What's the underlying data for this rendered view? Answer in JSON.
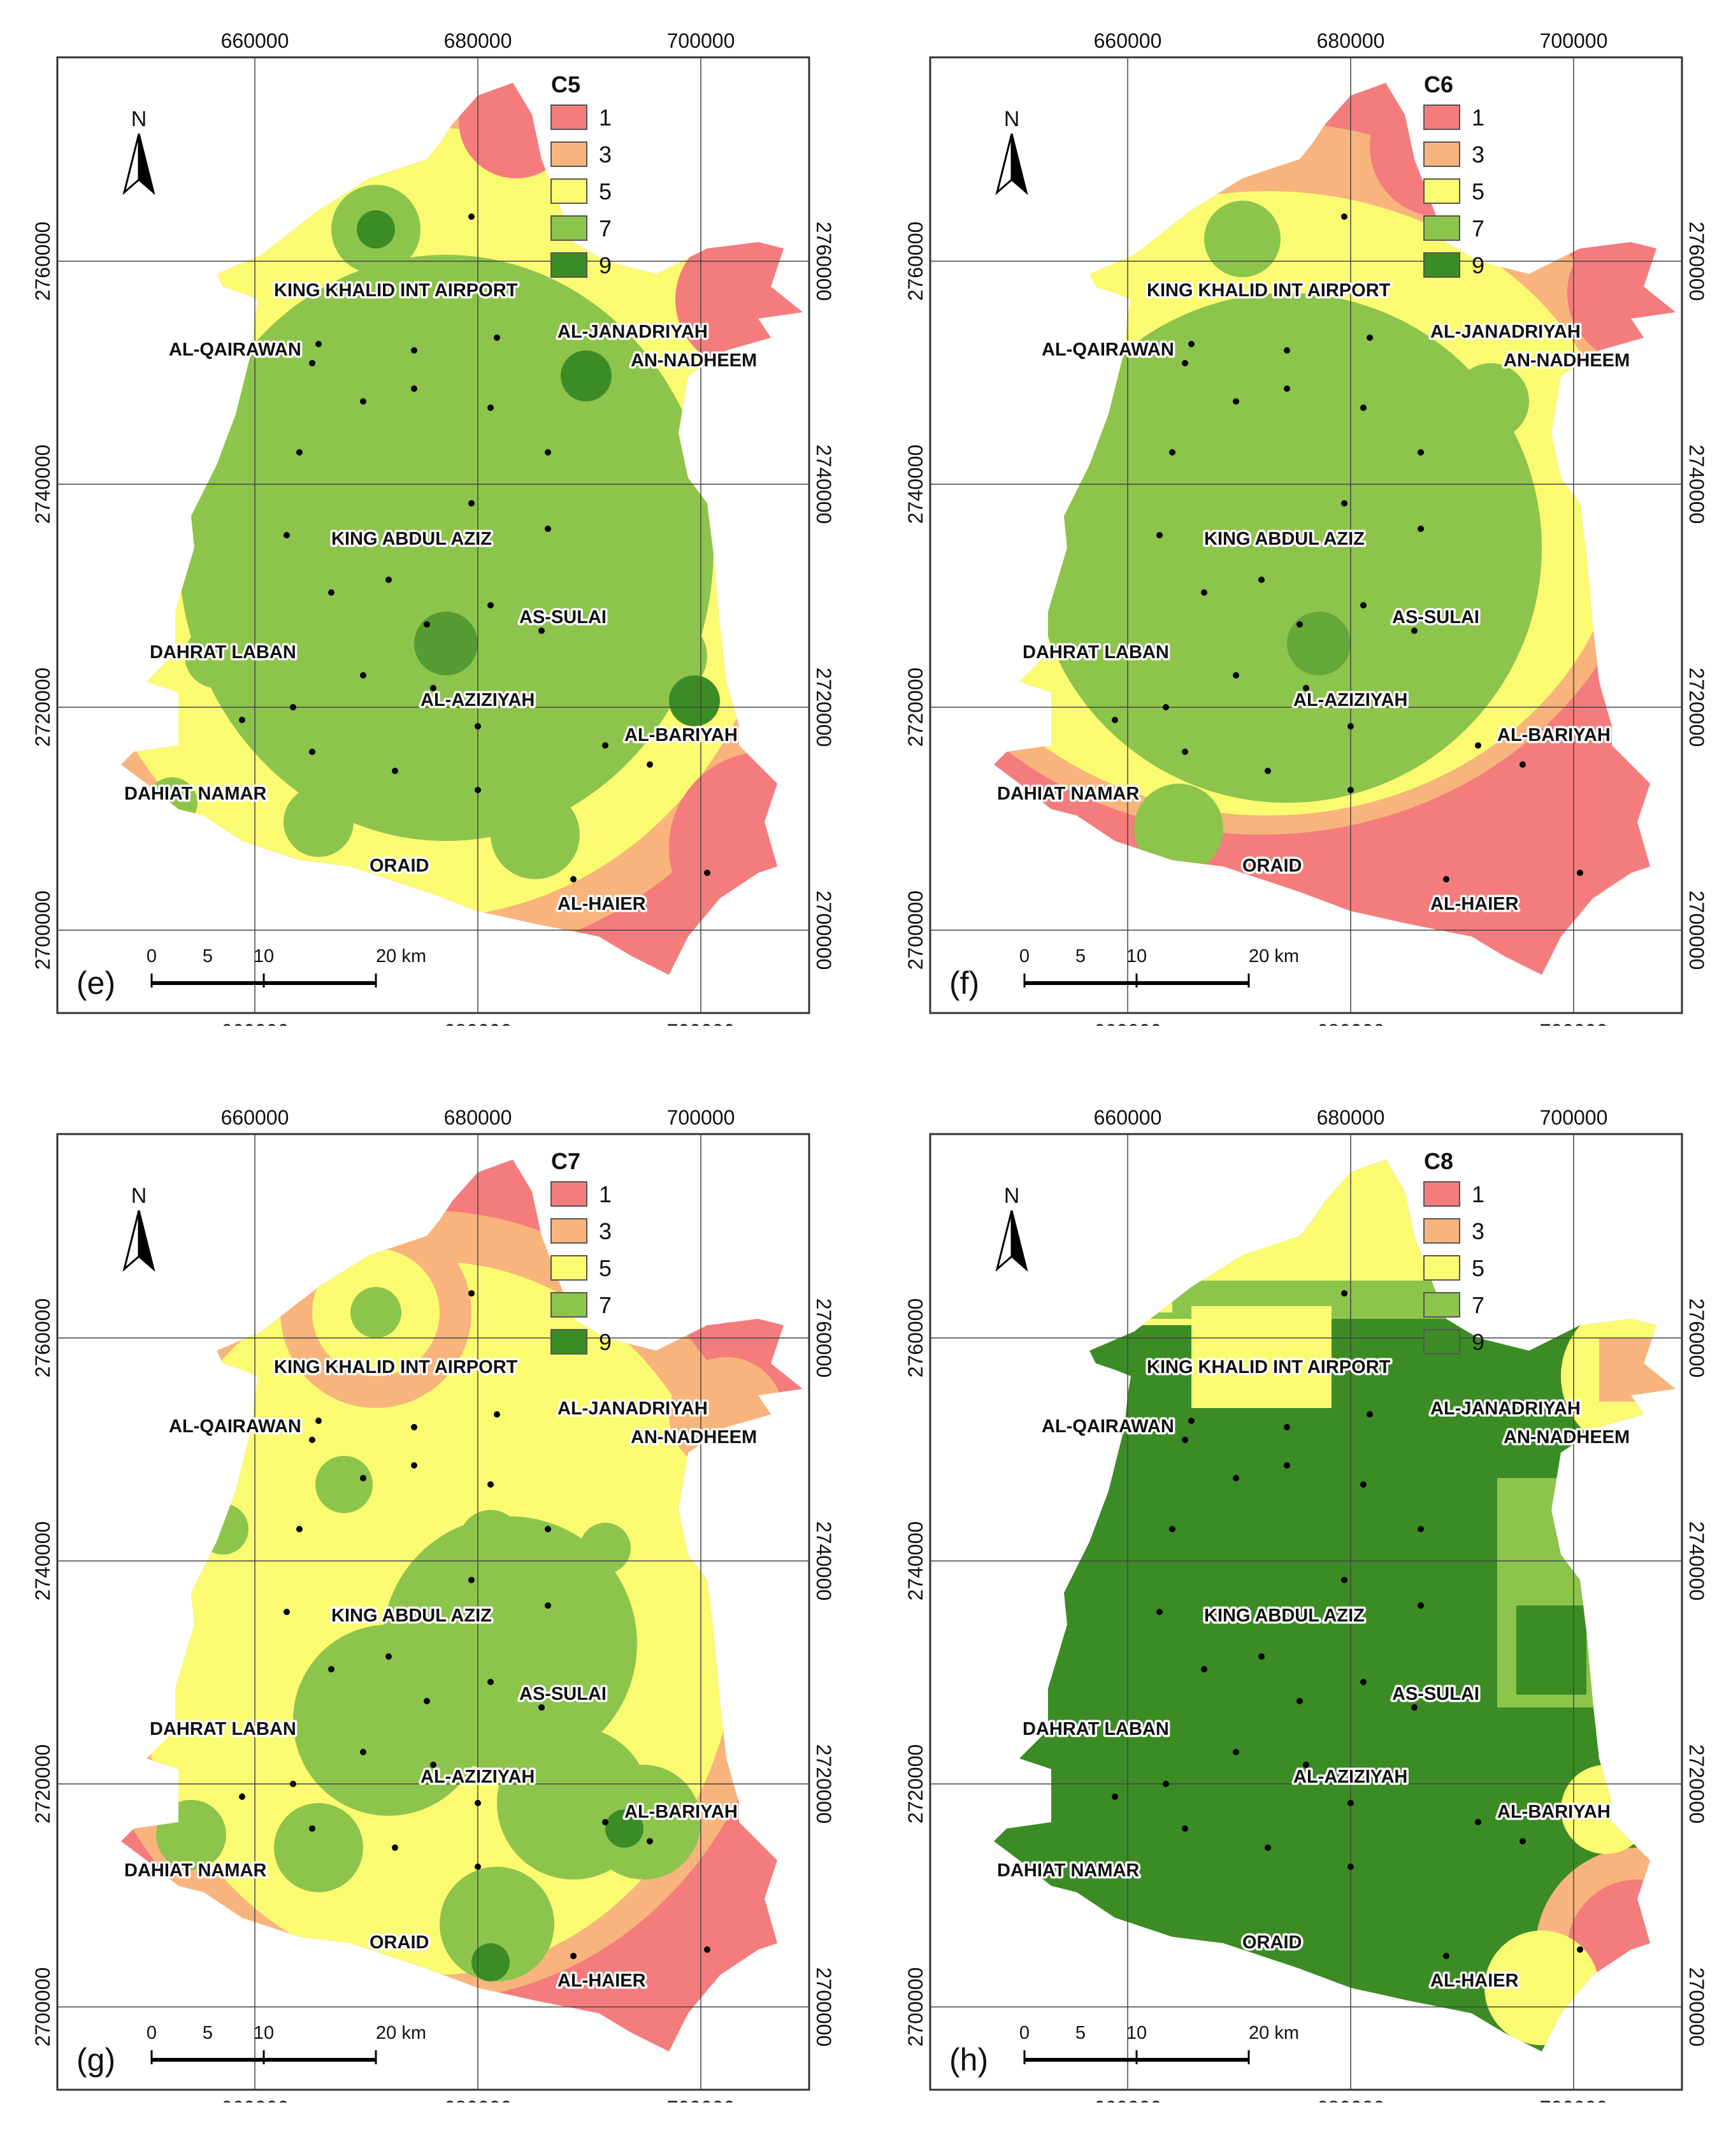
{
  "figure": {
    "x_ticks": [
      "660000",
      "680000",
      "700000"
    ],
    "y_ticks": [
      "2700000",
      "2720000",
      "2740000",
      "2760000"
    ],
    "legend_classes": [
      {
        "label": "1",
        "color": "#f47c7c"
      },
      {
        "label": "3",
        "color": "#f8b47c"
      },
      {
        "label": "5",
        "color": "#fbfb72"
      },
      {
        "label": "7",
        "color": "#8dc44c"
      },
      {
        "label": "9",
        "color": "#3c8c26"
      }
    ],
    "north_label": "N",
    "scale_labels": [
      "0",
      "5",
      "10",
      "20 km"
    ],
    "place_names": [
      "KING KHALID INT AIRPORT",
      "AL-QAIRAWAN",
      "AL-JANADRIYAH",
      "AN-NADHEEM",
      "KING ABDUL AZIZ",
      "AS-SULAI",
      "DAHRAT LABAN",
      "AL-AZIZIYAH",
      "AL-BARIYAH",
      "DAHIAT NAMAR",
      "ORAID",
      "AL-HAIER"
    ],
    "panels": [
      {
        "id": "e",
        "label": "(e)",
        "title": "C5",
        "dominant_class": "7"
      },
      {
        "id": "f",
        "label": "(f)",
        "title": "C6",
        "dominant_class": "7"
      },
      {
        "id": "g",
        "label": "(g)",
        "title": "C7",
        "dominant_class": "5"
      },
      {
        "id": "h",
        "label": "(h)",
        "title": "C8",
        "dominant_class": "9"
      }
    ]
  }
}
